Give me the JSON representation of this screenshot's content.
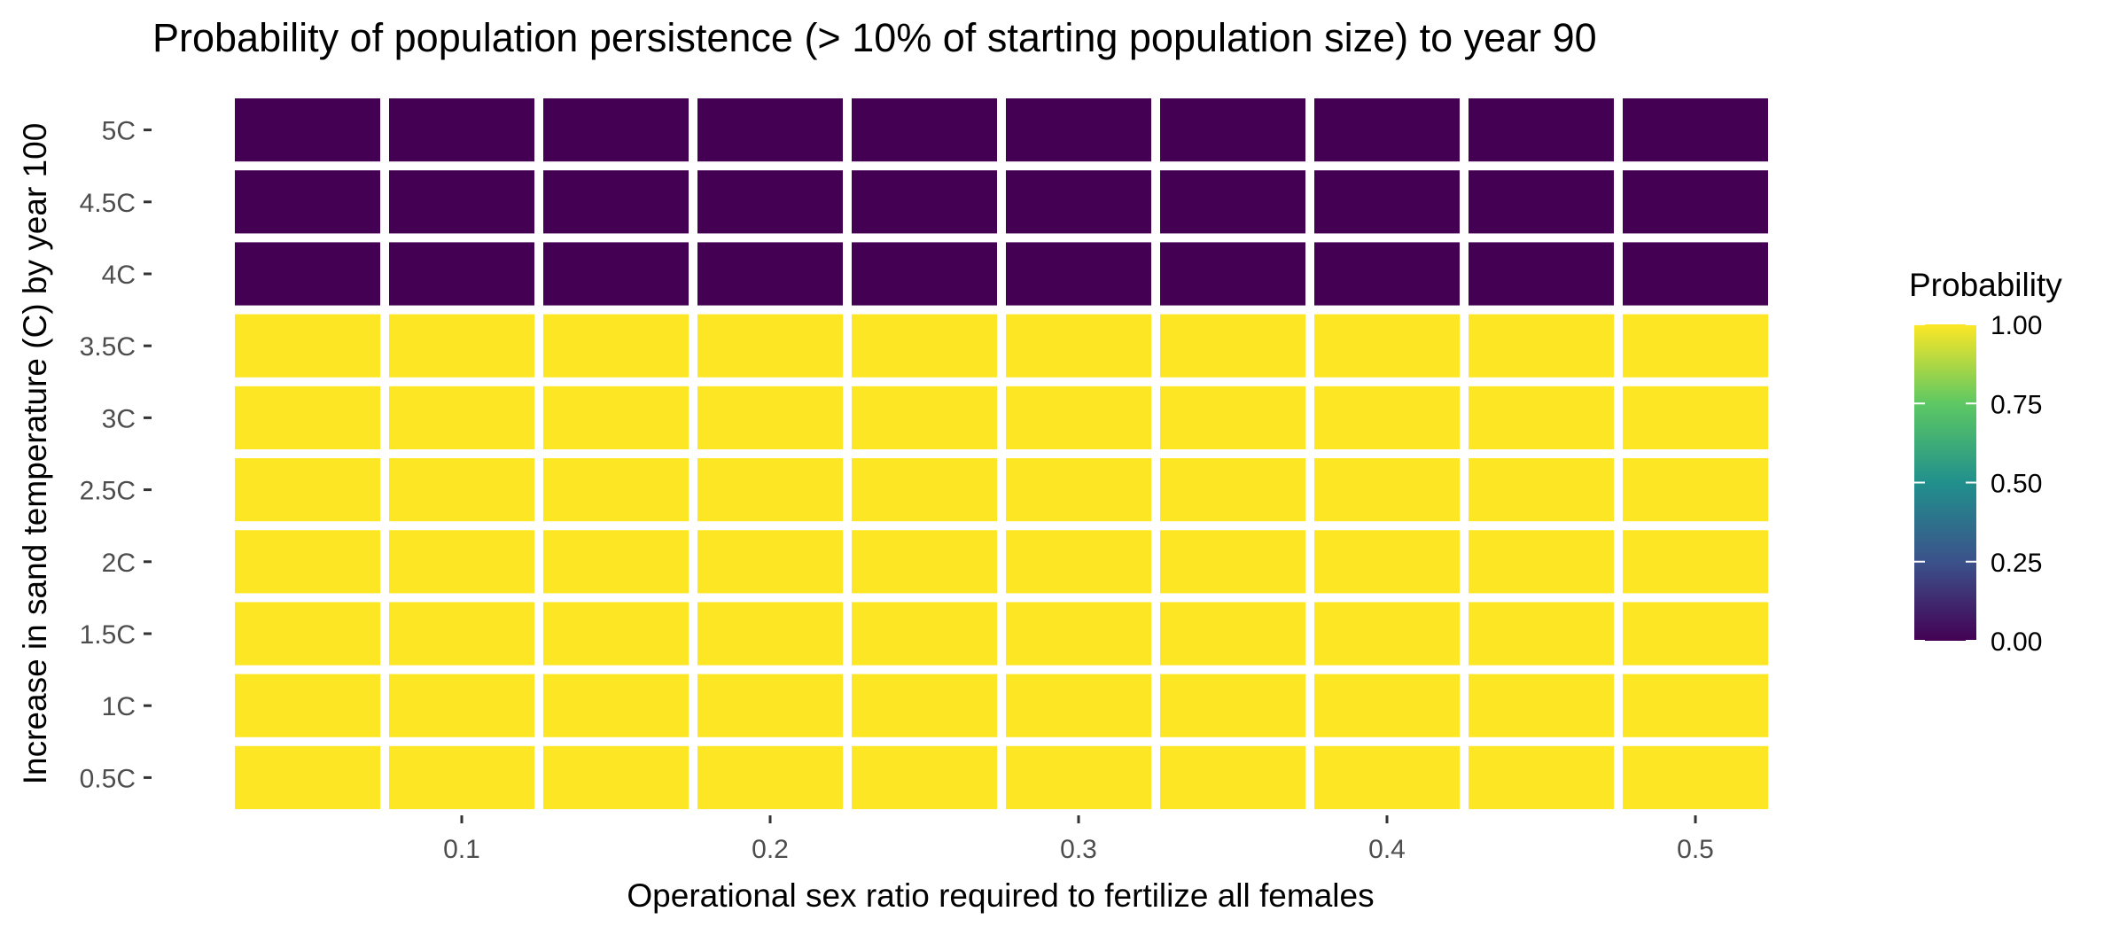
{
  "chart_data": {
    "type": "heatmap",
    "title": "Probability of population persistence (> 10% of starting population size) to year 90",
    "xlabel": "Operational sex ratio required to fertilize all females",
    "ylabel": "Increase in sand temperature (C) by year 100",
    "x": [
      0.05,
      0.1,
      0.15,
      0.2,
      0.25,
      0.3,
      0.35,
      0.4,
      0.45,
      0.5
    ],
    "x_ticks": [
      0.1,
      0.2,
      0.3,
      0.4,
      0.5
    ],
    "x_tick_labels": [
      "0.1",
      "0.2",
      "0.3",
      "0.4",
      "0.5"
    ],
    "xlim": [
      0.025,
      0.525
    ],
    "y_categories": [
      "0.5C",
      "1C",
      "1.5C",
      "2C",
      "2.5C",
      "3C",
      "3.5C",
      "4C",
      "4.5C",
      "5C"
    ],
    "values": [
      [
        1,
        1,
        1,
        1,
        1,
        1,
        1,
        1,
        1,
        1
      ],
      [
        1,
        1,
        1,
        1,
        1,
        1,
        1,
        1,
        1,
        1
      ],
      [
        1,
        1,
        1,
        1,
        1,
        1,
        1,
        1,
        1,
        1
      ],
      [
        1,
        1,
        1,
        1,
        1,
        1,
        1,
        1,
        1,
        1
      ],
      [
        1,
        1,
        1,
        1,
        1,
        1,
        1,
        1,
        1,
        1
      ],
      [
        1,
        1,
        1,
        1,
        1,
        1,
        1,
        1,
        1,
        1
      ],
      [
        1,
        1,
        1,
        1,
        1,
        1,
        1,
        1,
        1,
        1
      ],
      [
        0,
        0,
        0,
        0,
        0,
        0,
        0,
        0,
        0,
        0
      ],
      [
        0,
        0,
        0,
        0,
        0,
        0,
        0,
        0,
        0,
        0
      ],
      [
        0,
        0,
        0,
        0,
        0,
        0,
        0,
        0,
        0,
        0
      ]
    ],
    "legend": {
      "title": "Probability",
      "position": "right",
      "ticks": [
        0,
        0.25,
        0.5,
        0.75,
        1
      ],
      "tick_labels": [
        "0.00",
        "0.25",
        "0.50",
        "0.75",
        "1.00"
      ]
    },
    "colorscale": [
      "#440154",
      "#3b528b",
      "#21908c",
      "#5dc863",
      "#fde725"
    ],
    "grid": false
  }
}
